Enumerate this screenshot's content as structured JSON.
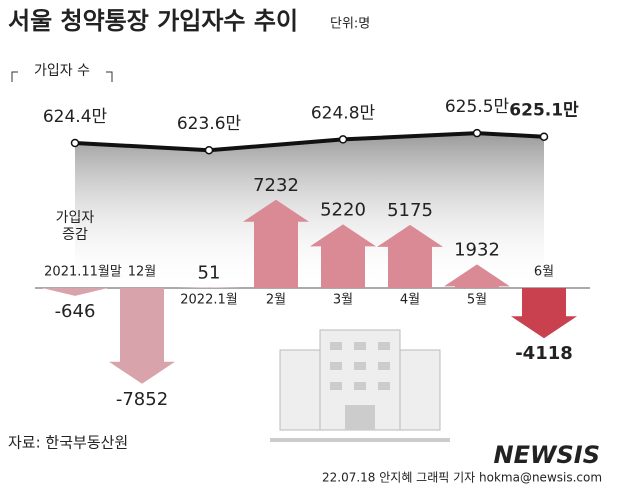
{
  "chart_data": {
    "type": "arrow-bar",
    "title": "서울 청약통장 가입자수 추이",
    "unit": "단위:명",
    "categories": [
      "2021.11월말",
      "12월",
      "2022.1월",
      "2월",
      "3월",
      "4월",
      "5월",
      "6월"
    ],
    "change_label": "가입자\n증감",
    "values": [
      -646,
      -7852,
      51,
      7232,
      5220,
      5175,
      1932,
      -4118
    ],
    "colors": [
      "#d9a3ab",
      "#d9a3ab",
      "#d9a3ab",
      "#d98a95",
      "#d98a95",
      "#d98a95",
      "#d98a95",
      "#c9404e"
    ],
    "line": {
      "name": "가입자 수",
      "color": "#111111",
      "values": [
        624.4,
        null,
        623.6,
        null,
        624.8,
        null,
        625.5,
        625.1
      ],
      "value_labels": [
        "624.4만",
        null,
        "623.6만",
        null,
        "624.8만",
        null,
        "625.5만",
        "625.1만"
      ]
    },
    "source": "자료: 한국부동산원",
    "credit": "22.07.18 안지혜 그래픽 기자 hokma@newsis.com",
    "logo": "NEWSIS"
  }
}
